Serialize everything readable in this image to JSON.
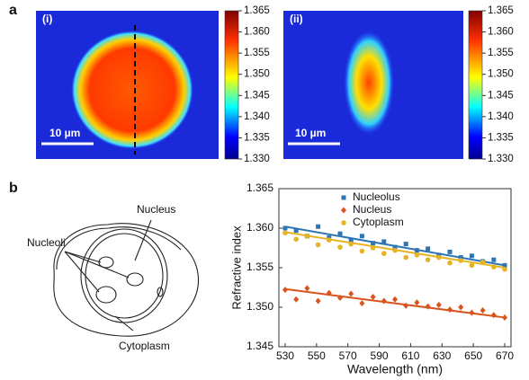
{
  "panels": {
    "a": "a",
    "b": "b"
  },
  "images": [
    {
      "label": "(i)",
      "scale_bar": "10 µm"
    },
    {
      "label": "(ii)",
      "scale_bar": "10 µm"
    }
  ],
  "colorbar": {
    "ylim": [
      1.33,
      1.365
    ],
    "yticks": [
      {
        "value": 1.33,
        "label": "1.330"
      },
      1.335,
      {
        "value": 1.34,
        "label": "1.340"
      },
      1.345,
      {
        "value": 1.35,
        "label": "1.350"
      },
      1.355,
      {
        "value": 1.36,
        "label": "1.360"
      },
      1.365
    ]
  },
  "diagram": {
    "nucleus": "Nucleus",
    "nucleoli": "Nucleoli",
    "cytoplasm": "Cytoplasm"
  },
  "chart_data": {
    "type": "scatter",
    "xlabel": "Wavelength (nm)",
    "ylabel": "Refractive index",
    "x": [
      530,
      537,
      544,
      551,
      558,
      565,
      572,
      579,
      586,
      593,
      600,
      607,
      614,
      621,
      628,
      635,
      642,
      649,
      656,
      663,
      670
    ],
    "xlim": [
      526,
      674
    ],
    "xticks": [
      530,
      550,
      570,
      590,
      610,
      630,
      650,
      670
    ],
    "ylim": [
      1.345,
      1.365
    ],
    "yticks": [
      1.345,
      {
        "value": 1.35,
        "label": "1.350"
      },
      1.355,
      {
        "value": 1.36,
        "label": "1.360"
      },
      1.365
    ],
    "legend": "upper-left",
    "series": [
      {
        "name": "Nucleolus",
        "color": "#2e75b6",
        "marker": "square",
        "values": [
          1.36,
          1.3597,
          1.359,
          1.3602,
          1.3588,
          1.3593,
          1.3585,
          1.359,
          1.3581,
          1.3583,
          1.3576,
          1.358,
          1.3572,
          1.3574,
          1.3566,
          1.357,
          1.3563,
          1.3565,
          1.3558,
          1.356,
          1.3553
        ],
        "fit_x": [
          530,
          670
        ],
        "fit_values": [
          1.3602,
          1.3553
        ]
      },
      {
        "name": "Nucleus",
        "color": "#d9541e",
        "marker": "diamond",
        "values": [
          1.3522,
          1.351,
          1.3524,
          1.3508,
          1.3518,
          1.3512,
          1.3517,
          1.3505,
          1.3513,
          1.3508,
          1.351,
          1.3502,
          1.3506,
          1.3501,
          1.3503,
          1.3497,
          1.35,
          1.3493,
          1.3496,
          1.349,
          1.3487
        ],
        "fit_x": [
          530,
          670
        ],
        "fit_values": [
          1.3523,
          1.3487
        ]
      },
      {
        "name": "Cytoplasm",
        "color": "#e6b322",
        "marker": "circle",
        "values": [
          1.3594,
          1.3586,
          1.359,
          1.3579,
          1.3585,
          1.3576,
          1.358,
          1.3571,
          1.3575,
          1.3568,
          1.3572,
          1.3563,
          1.3566,
          1.356,
          1.3563,
          1.3556,
          1.3559,
          1.3553,
          1.3557,
          1.3551,
          1.3548
        ],
        "fit_x": [
          530,
          670
        ],
        "fit_values": [
          1.3595,
          1.355
        ]
      }
    ]
  }
}
